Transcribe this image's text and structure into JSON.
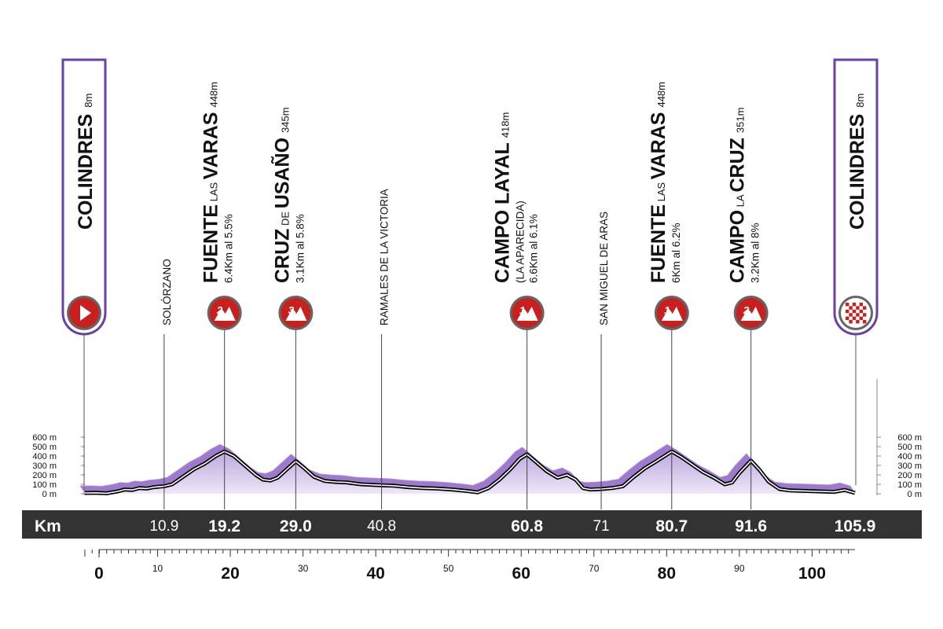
{
  "chart_data": {
    "type": "area",
    "xlabel": "Km",
    "x_range": [
      0,
      105.9
    ],
    "y_range": [
      0,
      600
    ],
    "y_ticks": [
      "0 m",
      "100 m",
      "200 m",
      "300 m",
      "400 m",
      "500 m",
      "600 m"
    ],
    "x_ticks_major": [
      "0",
      "20",
      "40",
      "60",
      "80",
      "100"
    ],
    "x_ticks_minor": [
      "10",
      "30",
      "50",
      "70",
      "90"
    ],
    "start": {
      "name": "COLINDRES",
      "alt": "8m",
      "km": 0
    },
    "finish": {
      "name": "COLINDRES",
      "alt": "8m",
      "km": 105.9
    },
    "waypoints": [
      {
        "name": "SOLÓRZANO",
        "km": 10.9,
        "km_label": "10.9"
      },
      {
        "name": "RAMALES DE LA VICTORIA",
        "km": 40.8,
        "km_label": "40.8"
      },
      {
        "name": "SAN MIGUEL DE ARAS",
        "km": 71,
        "km_label": "71"
      }
    ],
    "climbs": [
      {
        "name_a": "FUENTE",
        "name_b": " LAS ",
        "name_c": "VARAS",
        "alt": "448m",
        "detail": "6.4Km al 5.5%",
        "category": "2",
        "km": 19.2,
        "km_label": "19.2"
      },
      {
        "name_a": "CRUZ",
        "name_b": " DE ",
        "name_c": "USAÑO",
        "alt": "345m",
        "detail": "3.1Km al 5.8%",
        "category": "3",
        "km": 29.0,
        "km_label": "29.0"
      },
      {
        "name_a": "CAMPO LAYAL",
        "name_b": "",
        "name_c": "",
        "alt": "418m",
        "extra": "(LA APARECIDA)",
        "detail": "6.6Km al 6.1%",
        "category": "1",
        "km": 60.8,
        "km_label": "60.8"
      },
      {
        "name_a": "FUENTE",
        "name_b": " LAS ",
        "name_c": "VARAS",
        "alt": "448m",
        "detail": "6Km al 6.2%",
        "category": "1",
        "km": 80.7,
        "km_label": "80.7"
      },
      {
        "name_a": "CAMPO",
        "name_b": " LA ",
        "name_c": "CRUZ",
        "alt": "351m",
        "detail": "3.2Km al 8%",
        "category": "2",
        "km": 91.6,
        "km_label": "91.6"
      }
    ],
    "finish_km_label": "105.9",
    "profile": [
      [
        0,
        8
      ],
      [
        1.5,
        10
      ],
      [
        3,
        5
      ],
      [
        4.5,
        25
      ],
      [
        5.5,
        45
      ],
      [
        6.5,
        40
      ],
      [
        7.5,
        60
      ],
      [
        8.5,
        55
      ],
      [
        9.5,
        70
      ],
      [
        10.9,
        80
      ],
      [
        12,
        100
      ],
      [
        13.5,
        180
      ],
      [
        15,
        260
      ],
      [
        16.5,
        320
      ],
      [
        18,
        400
      ],
      [
        19.2,
        448
      ],
      [
        20.5,
        400
      ],
      [
        22,
        300
      ],
      [
        23.5,
        200
      ],
      [
        24.5,
        150
      ],
      [
        25.5,
        140
      ],
      [
        26.5,
        170
      ],
      [
        27.5,
        240
      ],
      [
        29.0,
        345
      ],
      [
        30.2,
        270
      ],
      [
        31.5,
        180
      ],
      [
        33,
        135
      ],
      [
        34.5,
        125
      ],
      [
        36,
        120
      ],
      [
        38,
        100
      ],
      [
        40.8,
        90
      ],
      [
        42.5,
        85
      ],
      [
        44.5,
        70
      ],
      [
        46.5,
        60
      ],
      [
        48.5,
        55
      ],
      [
        50.5,
        45
      ],
      [
        52.5,
        30
      ],
      [
        54,
        15
      ],
      [
        55.5,
        60
      ],
      [
        57,
        150
      ],
      [
        58.5,
        260
      ],
      [
        59.8,
        370
      ],
      [
        60.8,
        418
      ],
      [
        62,
        340
      ],
      [
        63.5,
        240
      ],
      [
        65,
        170
      ],
      [
        66.3,
        200
      ],
      [
        67.5,
        150
      ],
      [
        68.5,
        60
      ],
      [
        69.5,
        45
      ],
      [
        71,
        50
      ],
      [
        72.5,
        60
      ],
      [
        74,
        80
      ],
      [
        75.5,
        180
      ],
      [
        77,
        270
      ],
      [
        78.5,
        340
      ],
      [
        80.7,
        448
      ],
      [
        82,
        390
      ],
      [
        83.5,
        310
      ],
      [
        85,
        230
      ],
      [
        86.5,
        170
      ],
      [
        88,
        100
      ],
      [
        89,
        120
      ],
      [
        90,
        220
      ],
      [
        91.6,
        351
      ],
      [
        92.8,
        250
      ],
      [
        94,
        130
      ],
      [
        95.5,
        50
      ],
      [
        97,
        35
      ],
      [
        99,
        30
      ],
      [
        101,
        25
      ],
      [
        103,
        20
      ],
      [
        104.5,
        40
      ],
      [
        105.9,
        8
      ]
    ],
    "colors": {
      "accent": "#7c4dbc",
      "accent_light": "#b39ddb",
      "fill_light": "#efe7f8",
      "badge": "#c8201f",
      "bar": "#333333",
      "frame": "#6a3fa8"
    }
  }
}
